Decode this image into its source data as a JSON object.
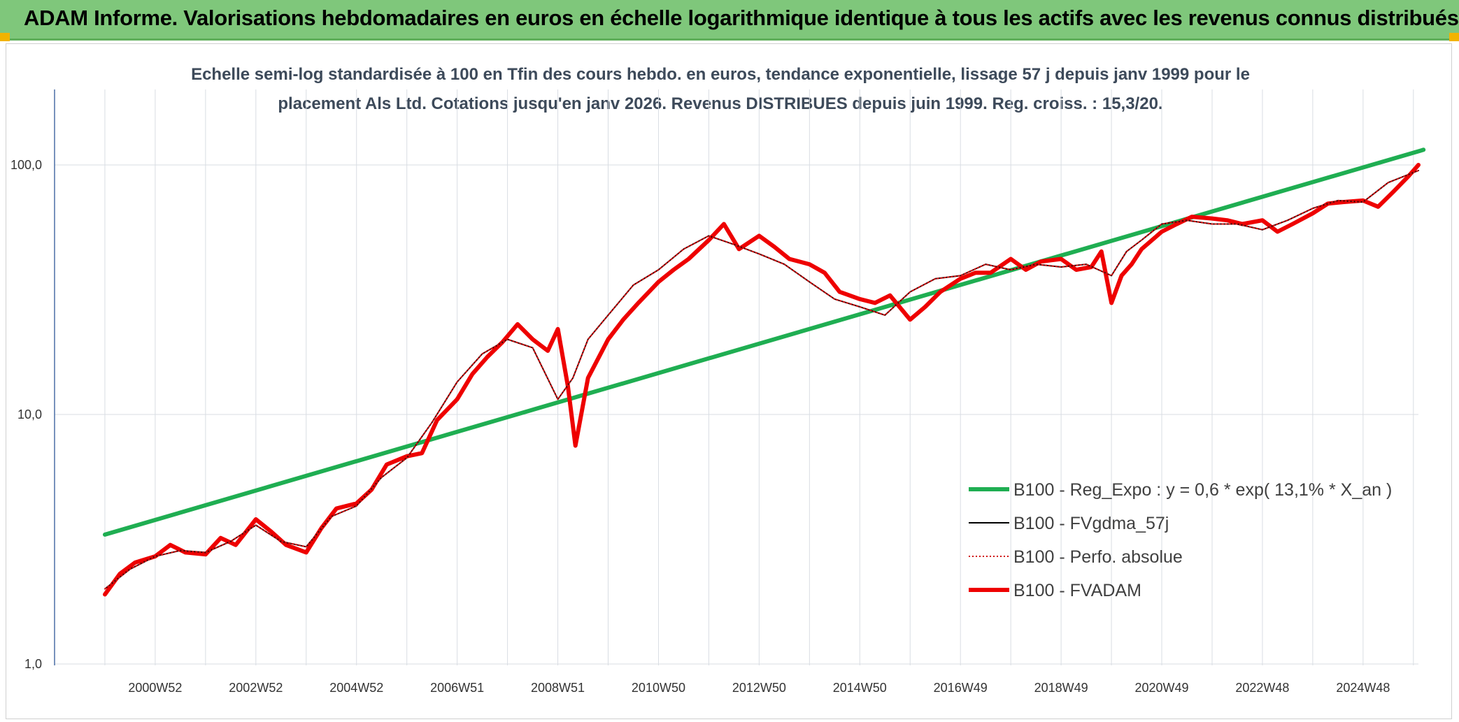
{
  "header": {
    "title": "ADAM Informe. Valorisations hebdomadaires en euros en échelle logarithmique identique à tous les actifs avec les revenus connus distribués"
  },
  "chart_data": {
    "type": "line",
    "subtitle_line1": "Echelle semi-log standardisée à 100 en Tfin des cours hebdo. en euros, tendance exponentielle, lissage 57 j depuis janv 1999 pour le",
    "subtitle_line2": "placement Als Ltd. Cotations jusqu'en janv 2026. Revenus DISTRIBUES depuis juin 1999. Reg. croiss. : 15,3/20.",
    "y_scale": "log",
    "ylim": [
      1,
      180
    ],
    "y_ticks": [
      {
        "value": 1,
        "label": "1,0"
      },
      {
        "value": 10,
        "label": "10,0"
      },
      {
        "value": 100,
        "label": "100,0"
      }
    ],
    "x_range": [
      1999.0,
      2026.1
    ],
    "x_ticks": [
      {
        "x": 2001.0,
        "label": "2000W52"
      },
      {
        "x": 2003.0,
        "label": "2002W52"
      },
      {
        "x": 2005.0,
        "label": "2004W52"
      },
      {
        "x": 2007.0,
        "label": "2006W51"
      },
      {
        "x": 2009.0,
        "label": "2008W51"
      },
      {
        "x": 2011.0,
        "label": "2010W50"
      },
      {
        "x": 2013.0,
        "label": "2012W50"
      },
      {
        "x": 2015.0,
        "label": "2014W50"
      },
      {
        "x": 2017.0,
        "label": "2016W49"
      },
      {
        "x": 2019.0,
        "label": "2018W49"
      },
      {
        "x": 2021.0,
        "label": "2020W49"
      },
      {
        "x": 2023.0,
        "label": "2022W48"
      },
      {
        "x": 2025.0,
        "label": "2024W48"
      }
    ],
    "grid": true,
    "legend_position": "bottom-right",
    "series": [
      {
        "name": "B100 - Reg_Expo : y = 0,6 * exp( 13,1% *  X_an )",
        "color": "#1fae52",
        "style": "thick",
        "x": [
          2000.0,
          2026.2
        ],
        "y": [
          3.3,
          115
        ]
      },
      {
        "name": "B100 - FVgdma_57j",
        "color": "#000000",
        "style": "thin",
        "x": [
          2000.0,
          2000.5,
          2001.0,
          2001.5,
          2002.0,
          2002.5,
          2003.0,
          2003.5,
          2004.0,
          2004.5,
          2005.0,
          2005.5,
          2006.0,
          2006.5,
          2007.0,
          2007.5,
          2008.0,
          2008.5,
          2009.0,
          2009.3,
          2009.6,
          2010.0,
          2010.5,
          2011.0,
          2011.5,
          2012.0,
          2012.5,
          2013.0,
          2013.5,
          2014.0,
          2014.5,
          2015.0,
          2015.5,
          2016.0,
          2016.5,
          2017.0,
          2017.5,
          2018.0,
          2018.5,
          2019.0,
          2019.5,
          2020.0,
          2020.3,
          2020.6,
          2021.0,
          2021.5,
          2022.0,
          2022.5,
          2023.0,
          2023.5,
          2024.0,
          2024.5,
          2025.0,
          2025.5,
          2026.1
        ],
        "y": [
          2.0,
          2.4,
          2.7,
          2.85,
          2.8,
          3.1,
          3.6,
          3.1,
          2.95,
          3.9,
          4.3,
          5.6,
          6.7,
          9.3,
          13.5,
          17.5,
          20,
          18.5,
          11.5,
          14,
          20,
          25,
          33,
          38,
          46,
          52,
          48,
          44,
          40,
          34,
          29,
          27,
          25,
          31,
          35,
          36,
          40,
          38,
          40,
          39,
          40,
          36,
          45,
          50,
          58,
          60,
          58,
          58,
          55,
          60,
          67,
          72,
          71,
          85,
          95
        ]
      },
      {
        "name": "B100 - Perfo. absolue",
        "color": "#d01010",
        "style": "dotted",
        "x": [
          2000.0,
          2000.5,
          2001.0,
          2001.5,
          2002.0,
          2002.5,
          2003.0,
          2003.5,
          2004.0,
          2004.5,
          2005.0,
          2005.5,
          2006.0,
          2006.5,
          2007.0,
          2007.5,
          2008.0,
          2008.5,
          2009.0,
          2009.3,
          2009.6,
          2010.0,
          2010.5,
          2011.0,
          2011.5,
          2012.0,
          2012.5,
          2013.0,
          2013.5,
          2014.0,
          2014.5,
          2015.0,
          2015.5,
          2016.0,
          2016.5,
          2017.0,
          2017.5,
          2018.0,
          2018.5,
          2019.0,
          2019.5,
          2020.0,
          2020.3,
          2020.6,
          2021.0,
          2021.5,
          2022.0,
          2022.5,
          2023.0,
          2023.5,
          2024.0,
          2024.5,
          2025.0,
          2025.5,
          2026.1
        ],
        "y": [
          2.0,
          2.4,
          2.7,
          2.85,
          2.8,
          3.1,
          3.6,
          3.1,
          2.95,
          3.9,
          4.3,
          5.6,
          6.7,
          9.3,
          13.5,
          17.5,
          20,
          18.5,
          11.5,
          14,
          20,
          25,
          33,
          38,
          46,
          52,
          48,
          44,
          40,
          34,
          29,
          27,
          25,
          31,
          35,
          36,
          40,
          38,
          40,
          39,
          40,
          36,
          45,
          50,
          58,
          60,
          58,
          58,
          55,
          60,
          67,
          72,
          71,
          85,
          95
        ]
      },
      {
        "name": "B100 - FVADAM",
        "color": "#ee0000",
        "style": "thick",
        "x": [
          2000.0,
          2000.3,
          2000.6,
          2001.0,
          2001.3,
          2001.6,
          2002.0,
          2002.3,
          2002.6,
          2003.0,
          2003.3,
          2003.6,
          2004.0,
          2004.3,
          2004.6,
          2005.0,
          2005.3,
          2005.6,
          2006.0,
          2006.3,
          2006.6,
          2007.0,
          2007.3,
          2007.6,
          2007.9,
          2008.2,
          2008.5,
          2008.8,
          2009.0,
          2009.2,
          2009.35,
          2009.6,
          2010.0,
          2010.3,
          2010.6,
          2011.0,
          2011.3,
          2011.6,
          2012.0,
          2012.3,
          2012.6,
          2013.0,
          2013.3,
          2013.6,
          2014.0,
          2014.3,
          2014.6,
          2015.0,
          2015.3,
          2015.6,
          2016.0,
          2016.3,
          2016.6,
          2017.0,
          2017.3,
          2017.6,
          2018.0,
          2018.3,
          2018.6,
          2019.0,
          2019.3,
          2019.6,
          2019.8,
          2020.0,
          2020.2,
          2020.4,
          2020.6,
          2021.0,
          2021.3,
          2021.6,
          2022.0,
          2022.3,
          2022.6,
          2023.0,
          2023.3,
          2023.6,
          2024.0,
          2024.3,
          2024.6,
          2025.0,
          2025.3,
          2025.6,
          2025.9,
          2026.1
        ],
        "y": [
          1.9,
          2.3,
          2.55,
          2.7,
          3.0,
          2.8,
          2.75,
          3.2,
          3.0,
          3.8,
          3.4,
          3.0,
          2.8,
          3.5,
          4.2,
          4.4,
          5.0,
          6.3,
          6.8,
          7.0,
          9.5,
          11.5,
          14.5,
          17,
          19.5,
          23,
          20,
          18,
          22,
          13,
          7.5,
          14,
          20,
          24,
          28,
          34,
          38,
          42,
          50,
          58,
          46,
          52,
          47,
          42,
          40,
          37,
          31,
          29,
          28,
          30,
          24,
          27,
          31,
          35,
          37,
          37,
          42,
          38,
          41,
          42,
          38,
          39,
          45,
          28,
          36,
          40,
          46,
          54,
          58,
          62,
          61,
          60,
          58,
          60,
          54,
          58,
          64,
          70,
          71,
          72,
          68,
          78,
          90,
          100
        ]
      }
    ]
  }
}
